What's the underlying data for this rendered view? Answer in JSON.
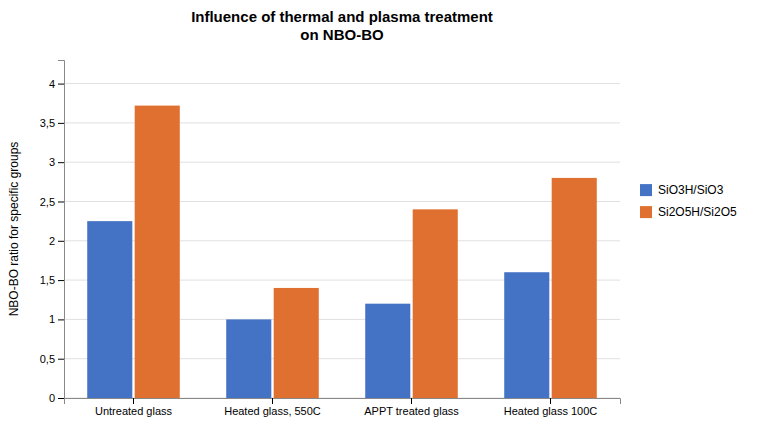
{
  "chart_data": {
    "type": "bar",
    "title": "Influence of thermal and plasma treatment\non NBO-BO",
    "ylabel": "NBO-BO ratio for specific groups",
    "categories": [
      "Untreated glass",
      "Heated glass, 550C",
      "APPT treated glass",
      "Heated glass 100C"
    ],
    "series": [
      {
        "name": "SiO3H/SiO3",
        "color": "#4472c4",
        "values": [
          2.25,
          1.0,
          1.2,
          1.6
        ]
      },
      {
        "name": "Si2O5H/Si2O5",
        "color": "#e07030",
        "values": [
          3.72,
          1.4,
          2.4,
          2.8
        ]
      }
    ],
    "ylim": [
      0,
      4.3
    ],
    "yticks": [
      0,
      {
        "value": 0.5,
        "label": "0,5"
      },
      1,
      {
        "value": 1.5,
        "label": "1,5"
      },
      2,
      {
        "value": 2.5,
        "label": "2,5"
      },
      3,
      {
        "value": 3.5,
        "label": "3,5"
      },
      4
    ],
    "grid": true,
    "legend": "right"
  }
}
